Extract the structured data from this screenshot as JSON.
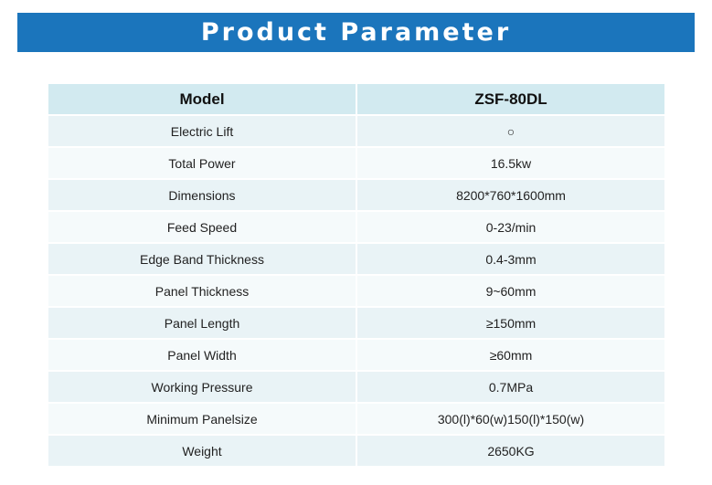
{
  "banner": {
    "title": "Product Parameter"
  },
  "table": {
    "header": {
      "label": "Model",
      "value": "ZSF-80DL"
    },
    "rows": [
      {
        "label": "Electric Lift",
        "value": "○"
      },
      {
        "label": "Total Power",
        "value": "16.5kw"
      },
      {
        "label": "Dimensions",
        "value": "8200*760*1600mm"
      },
      {
        "label": "Feed Speed",
        "value": "0-23/min"
      },
      {
        "label": "Edge Band Thickness",
        "value": "0.4-3mm"
      },
      {
        "label": "Panel Thickness",
        "value": "9~60mm"
      },
      {
        "label": "Panel Length",
        "value": "≥150mm"
      },
      {
        "label": "Panel Width",
        "value": "≥60mm"
      },
      {
        "label": "Working Pressure",
        "value": "0.7MPa"
      },
      {
        "label": "Minimum Panelsize",
        "value": "300(l)*60(w)150(l)*150(w)"
      },
      {
        "label": "Weight",
        "value": "2650KG"
      }
    ]
  },
  "colors": {
    "banner": "#1b75bc",
    "header_row": "#d2eaf0",
    "row_odd": "#e9f3f6",
    "row_even": "#f5fafb"
  }
}
